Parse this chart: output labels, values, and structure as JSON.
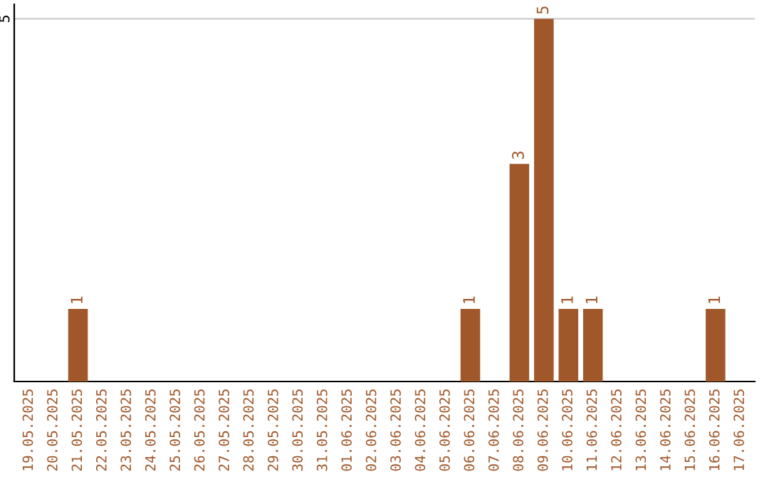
{
  "chart_data": {
    "type": "bar",
    "categories": [
      "19.05.2025",
      "20.05.2025",
      "21.05.2025",
      "22.05.2025",
      "23.05.2025",
      "24.05.2025",
      "25.05.2025",
      "26.05.2025",
      "27.05.2025",
      "28.05.2025",
      "29.05.2025",
      "30.05.2025",
      "31.05.2025",
      "01.06.2025",
      "02.06.2025",
      "03.06.2025",
      "04.06.2025",
      "05.06.2025",
      "06.06.2025",
      "07.06.2025",
      "08.06.2025",
      "09.06.2025",
      "10.06.2025",
      "11.06.2025",
      "12.06.2025",
      "13.06.2025",
      "14.06.2025",
      "15.06.2025",
      "16.06.2025",
      "17.06.2025"
    ],
    "values": [
      0,
      0,
      1,
      0,
      0,
      0,
      0,
      0,
      0,
      0,
      0,
      0,
      0,
      0,
      0,
      0,
      0,
      0,
      1,
      0,
      3,
      5,
      1,
      1,
      0,
      0,
      0,
      0,
      1,
      0
    ],
    "value_labels": [
      null,
      null,
      "1",
      null,
      null,
      null,
      null,
      null,
      null,
      null,
      null,
      null,
      null,
      null,
      null,
      null,
      null,
      null,
      "1",
      null,
      "3",
      "5",
      "1",
      "1",
      null,
      null,
      null,
      null,
      "1",
      null
    ],
    "color": "#a0582a",
    "ylim": [
      0,
      5.2
    ],
    "yticks": [
      5
    ],
    "grid": "y",
    "legend": false
  }
}
